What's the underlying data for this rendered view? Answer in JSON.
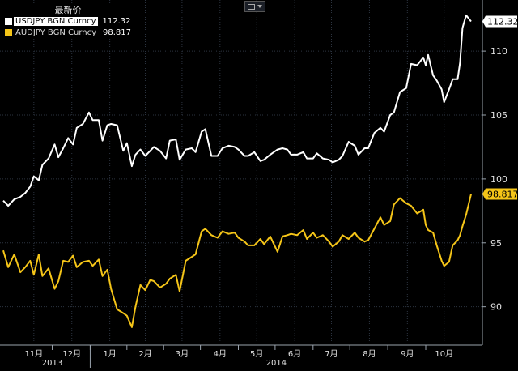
{
  "legend": {
    "title": "最新价",
    "items": [
      {
        "label": "USDJPY BGN Curncy",
        "value": "112.32",
        "color": "#ffffff"
      },
      {
        "label": "AUDJPY BGN Curncy",
        "value": "98.817",
        "color": "#f5c518"
      }
    ]
  },
  "chart_data": {
    "type": "line",
    "ylim": [
      87,
      114
    ],
    "yticks": [
      90,
      95,
      100,
      105,
      110
    ],
    "grid": true,
    "x_range": [
      "2013-10-21",
      "2014-11-07"
    ],
    "month_labels": [
      {
        "label": "11月",
        "date": "2013-11-15"
      },
      {
        "label": "12月",
        "date": "2013-12-16"
      },
      {
        "label": "1月",
        "date": "2014-01-16"
      },
      {
        "label": "2月",
        "date": "2014-02-14"
      },
      {
        "label": "3月",
        "date": "2014-03-16"
      },
      {
        "label": "4月",
        "date": "2014-04-16"
      },
      {
        "label": "5月",
        "date": "2014-05-16"
      },
      {
        "label": "6月",
        "date": "2014-06-16"
      },
      {
        "label": "7月",
        "date": "2014-07-16"
      },
      {
        "label": "8月",
        "date": "2014-08-16"
      },
      {
        "label": "9月",
        "date": "2014-09-16"
      },
      {
        "label": "10月",
        "date": "2014-10-16"
      }
    ],
    "year_labels": [
      {
        "label": "2013",
        "date": "2013-11-30"
      },
      {
        "label": "2014",
        "date": "2014-06-01"
      }
    ],
    "series": [
      {
        "name": "USDJPY BGN Curncy",
        "color": "#ffffff",
        "last_label": "112.32",
        "points": [
          [
            "2013-10-21",
            98.3
          ],
          [
            "2013-10-25",
            97.9
          ],
          [
            "2013-10-30",
            98.4
          ],
          [
            "2013-11-04",
            98.6
          ],
          [
            "2013-11-08",
            98.9
          ],
          [
            "2013-11-12",
            99.4
          ],
          [
            "2013-11-15",
            100.2
          ],
          [
            "2013-11-19",
            99.9
          ],
          [
            "2013-11-22",
            101.1
          ],
          [
            "2013-11-27",
            101.6
          ],
          [
            "2013-12-02",
            102.7
          ],
          [
            "2013-12-05",
            101.7
          ],
          [
            "2013-12-09",
            102.4
          ],
          [
            "2013-12-13",
            103.2
          ],
          [
            "2013-12-17",
            102.7
          ],
          [
            "2013-12-20",
            104.0
          ],
          [
            "2013-12-25",
            104.3
          ],
          [
            "2013-12-30",
            105.2
          ],
          [
            "2014-01-02",
            104.6
          ],
          [
            "2014-01-07",
            104.6
          ],
          [
            "2014-01-10",
            103.0
          ],
          [
            "2014-01-14",
            104.2
          ],
          [
            "2014-01-17",
            104.3
          ],
          [
            "2014-01-22",
            104.2
          ],
          [
            "2014-01-27",
            102.2
          ],
          [
            "2014-01-30",
            102.8
          ],
          [
            "2014-02-03",
            101.0
          ],
          [
            "2014-02-06",
            101.9
          ],
          [
            "2014-02-10",
            102.3
          ],
          [
            "2014-02-14",
            101.8
          ],
          [
            "2014-02-18",
            102.2
          ],
          [
            "2014-02-21",
            102.5
          ],
          [
            "2014-02-26",
            102.2
          ],
          [
            "2014-03-03",
            101.6
          ],
          [
            "2014-03-06",
            103.0
          ],
          [
            "2014-03-11",
            103.1
          ],
          [
            "2014-03-14",
            101.5
          ],
          [
            "2014-03-19",
            102.3
          ],
          [
            "2014-03-24",
            102.4
          ],
          [
            "2014-03-27",
            102.1
          ],
          [
            "2014-04-01",
            103.7
          ],
          [
            "2014-04-04",
            103.9
          ],
          [
            "2014-04-09",
            101.8
          ],
          [
            "2014-04-14",
            101.8
          ],
          [
            "2014-04-18",
            102.4
          ],
          [
            "2014-04-23",
            102.6
          ],
          [
            "2014-04-28",
            102.5
          ],
          [
            "2014-05-01",
            102.3
          ],
          [
            "2014-05-06",
            101.8
          ],
          [
            "2014-05-09",
            101.8
          ],
          [
            "2014-05-14",
            102.1
          ],
          [
            "2014-05-19",
            101.4
          ],
          [
            "2014-05-22",
            101.5
          ],
          [
            "2014-05-27",
            101.9
          ],
          [
            "2014-06-02",
            102.3
          ],
          [
            "2014-06-06",
            102.4
          ],
          [
            "2014-06-10",
            102.3
          ],
          [
            "2014-06-13",
            101.9
          ],
          [
            "2014-06-18",
            101.9
          ],
          [
            "2014-06-23",
            102.1
          ],
          [
            "2014-06-26",
            101.6
          ],
          [
            "2014-07-01",
            101.6
          ],
          [
            "2014-07-04",
            102.0
          ],
          [
            "2014-07-09",
            101.6
          ],
          [
            "2014-07-14",
            101.5
          ],
          [
            "2014-07-17",
            101.3
          ],
          [
            "2014-07-22",
            101.5
          ],
          [
            "2014-07-25",
            101.8
          ],
          [
            "2014-07-30",
            102.9
          ],
          [
            "2014-08-04",
            102.6
          ],
          [
            "2014-08-07",
            101.9
          ],
          [
            "2014-08-12",
            102.4
          ],
          [
            "2014-08-15",
            102.4
          ],
          [
            "2014-08-20",
            103.6
          ],
          [
            "2014-08-25",
            104.0
          ],
          [
            "2014-08-28",
            103.7
          ],
          [
            "2014-09-02",
            105.0
          ],
          [
            "2014-09-05",
            105.2
          ],
          [
            "2014-09-10",
            106.8
          ],
          [
            "2014-09-15",
            107.1
          ],
          [
            "2014-09-19",
            109.0
          ],
          [
            "2014-09-24",
            108.9
          ],
          [
            "2014-09-29",
            109.5
          ],
          [
            "2014-10-01",
            108.9
          ],
          [
            "2014-10-03",
            109.7
          ],
          [
            "2014-10-07",
            108.1
          ],
          [
            "2014-10-10",
            107.7
          ],
          [
            "2014-10-14",
            107.0
          ],
          [
            "2014-10-16",
            106.0
          ],
          [
            "2014-10-20",
            107.0
          ],
          [
            "2014-10-23",
            107.8
          ],
          [
            "2014-10-27",
            107.8
          ],
          [
            "2014-10-29",
            109.1
          ],
          [
            "2014-10-31",
            111.8
          ],
          [
            "2014-11-03",
            112.8
          ],
          [
            "2014-11-07",
            112.32
          ]
        ]
      },
      {
        "name": "AUDJPY BGN Curncy",
        "color": "#f5c518",
        "last_label": "98.817",
        "points": [
          [
            "2013-10-21",
            94.4
          ],
          [
            "2013-10-25",
            93.1
          ],
          [
            "2013-10-30",
            94.1
          ],
          [
            "2013-11-04",
            92.7
          ],
          [
            "2013-11-08",
            93.1
          ],
          [
            "2013-11-12",
            93.6
          ],
          [
            "2013-11-15",
            92.5
          ],
          [
            "2013-11-19",
            94.1
          ],
          [
            "2013-11-22",
            92.4
          ],
          [
            "2013-11-27",
            93.0
          ],
          [
            "2013-12-02",
            91.4
          ],
          [
            "2013-12-05",
            92.0
          ],
          [
            "2013-12-09",
            93.6
          ],
          [
            "2013-12-13",
            93.5
          ],
          [
            "2013-12-17",
            94.0
          ],
          [
            "2013-12-20",
            93.1
          ],
          [
            "2013-12-25",
            93.5
          ],
          [
            "2013-12-30",
            93.6
          ],
          [
            "2014-01-02",
            93.2
          ],
          [
            "2014-01-07",
            93.7
          ],
          [
            "2014-01-10",
            92.4
          ],
          [
            "2014-01-14",
            92.9
          ],
          [
            "2014-01-17",
            91.4
          ],
          [
            "2014-01-22",
            89.8
          ],
          [
            "2014-01-27",
            89.5
          ],
          [
            "2014-01-30",
            89.3
          ],
          [
            "2014-02-03",
            88.4
          ],
          [
            "2014-02-06",
            90.0
          ],
          [
            "2014-02-10",
            91.7
          ],
          [
            "2014-02-14",
            91.3
          ],
          [
            "2014-02-18",
            92.1
          ],
          [
            "2014-02-21",
            92.0
          ],
          [
            "2014-02-26",
            91.5
          ],
          [
            "2014-03-03",
            91.8
          ],
          [
            "2014-03-06",
            92.2
          ],
          [
            "2014-03-11",
            92.5
          ],
          [
            "2014-03-14",
            91.2
          ],
          [
            "2014-03-19",
            93.6
          ],
          [
            "2014-03-24",
            93.9
          ],
          [
            "2014-03-27",
            94.1
          ],
          [
            "2014-04-01",
            95.9
          ],
          [
            "2014-04-04",
            96.1
          ],
          [
            "2014-04-09",
            95.6
          ],
          [
            "2014-04-14",
            95.4
          ],
          [
            "2014-04-18",
            95.9
          ],
          [
            "2014-04-23",
            95.7
          ],
          [
            "2014-04-28",
            95.8
          ],
          [
            "2014-05-01",
            95.4
          ],
          [
            "2014-05-06",
            95.1
          ],
          [
            "2014-05-09",
            94.8
          ],
          [
            "2014-05-14",
            94.8
          ],
          [
            "2014-05-19",
            95.3
          ],
          [
            "2014-05-22",
            94.9
          ],
          [
            "2014-05-27",
            95.5
          ],
          [
            "2014-06-02",
            94.3
          ],
          [
            "2014-06-06",
            95.5
          ],
          [
            "2014-06-10",
            95.6
          ],
          [
            "2014-06-13",
            95.7
          ],
          [
            "2014-06-18",
            95.6
          ],
          [
            "2014-06-23",
            96.0
          ],
          [
            "2014-06-26",
            95.3
          ],
          [
            "2014-07-01",
            95.8
          ],
          [
            "2014-07-04",
            95.4
          ],
          [
            "2014-07-09",
            95.6
          ],
          [
            "2014-07-14",
            95.1
          ],
          [
            "2014-07-17",
            94.7
          ],
          [
            "2014-07-22",
            95.1
          ],
          [
            "2014-07-25",
            95.6
          ],
          [
            "2014-07-30",
            95.3
          ],
          [
            "2014-08-04",
            95.8
          ],
          [
            "2014-08-07",
            95.4
          ],
          [
            "2014-08-12",
            95.1
          ],
          [
            "2014-08-15",
            95.2
          ],
          [
            "2014-08-20",
            96.1
          ],
          [
            "2014-08-25",
            97.0
          ],
          [
            "2014-08-28",
            96.4
          ],
          [
            "2014-09-02",
            96.7
          ],
          [
            "2014-09-05",
            98.0
          ],
          [
            "2014-09-10",
            98.5
          ],
          [
            "2014-09-15",
            98.1
          ],
          [
            "2014-09-19",
            97.9
          ],
          [
            "2014-09-24",
            97.3
          ],
          [
            "2014-09-29",
            97.6
          ],
          [
            "2014-10-01",
            96.4
          ],
          [
            "2014-10-03",
            96.0
          ],
          [
            "2014-10-07",
            95.8
          ],
          [
            "2014-10-10",
            94.8
          ],
          [
            "2014-10-14",
            93.6
          ],
          [
            "2014-10-16",
            93.2
          ],
          [
            "2014-10-20",
            93.5
          ],
          [
            "2014-10-23",
            94.8
          ],
          [
            "2014-10-27",
            95.2
          ],
          [
            "2014-10-29",
            95.6
          ],
          [
            "2014-10-31",
            96.3
          ],
          [
            "2014-11-03",
            97.2
          ],
          [
            "2014-11-07",
            98.817
          ]
        ]
      }
    ]
  }
}
